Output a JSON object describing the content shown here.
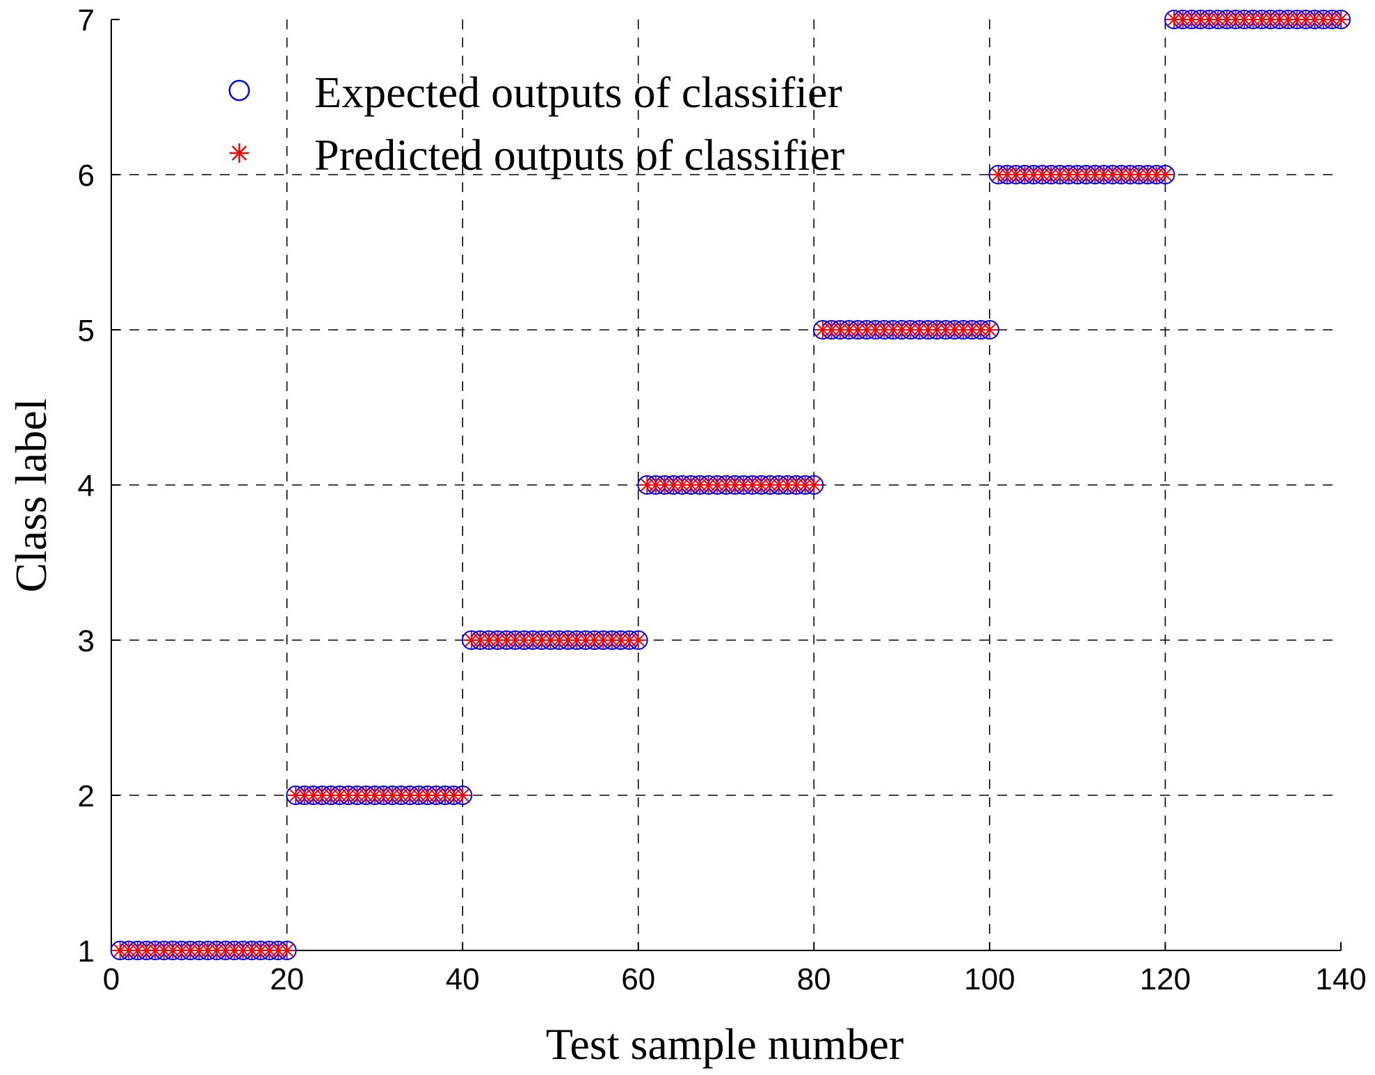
{
  "chart_data": {
    "type": "scatter",
    "xlabel": "Test sample number",
    "ylabel": "Class label",
    "xlim": [
      0,
      140
    ],
    "ylim": [
      1,
      7
    ],
    "xticks": [
      "0",
      "20",
      "40",
      "60",
      "80",
      "100",
      "120",
      "140"
    ],
    "yticks": [
      "1",
      "2",
      "3",
      "4",
      "5",
      "6",
      "7"
    ],
    "grid": true,
    "grid_style": "dashed",
    "legend_position": "top-left",
    "x": [
      1,
      2,
      3,
      4,
      5,
      6,
      7,
      8,
      9,
      10,
      11,
      12,
      13,
      14,
      15,
      16,
      17,
      18,
      19,
      20,
      21,
      22,
      23,
      24,
      25,
      26,
      27,
      28,
      29,
      30,
      31,
      32,
      33,
      34,
      35,
      36,
      37,
      38,
      39,
      40,
      41,
      42,
      43,
      44,
      45,
      46,
      47,
      48,
      49,
      50,
      51,
      52,
      53,
      54,
      55,
      56,
      57,
      58,
      59,
      60,
      61,
      62,
      63,
      64,
      65,
      66,
      67,
      68,
      69,
      70,
      71,
      72,
      73,
      74,
      75,
      76,
      77,
      78,
      79,
      80,
      81,
      82,
      83,
      84,
      85,
      86,
      87,
      88,
      89,
      90,
      91,
      92,
      93,
      94,
      95,
      96,
      97,
      98,
      99,
      100,
      101,
      102,
      103,
      104,
      105,
      106,
      107,
      108,
      109,
      110,
      111,
      112,
      113,
      114,
      115,
      116,
      117,
      118,
      119,
      120,
      121,
      122,
      123,
      124,
      125,
      126,
      127,
      128,
      129,
      130,
      131,
      132,
      133,
      134,
      135,
      136,
      137,
      138,
      139,
      140
    ],
    "series": [
      {
        "name": "Expected outputs of classifier",
        "marker": "circle",
        "color": "#0000ff",
        "values": [
          1,
          1,
          1,
          1,
          1,
          1,
          1,
          1,
          1,
          1,
          1,
          1,
          1,
          1,
          1,
          1,
          1,
          1,
          1,
          1,
          2,
          2,
          2,
          2,
          2,
          2,
          2,
          2,
          2,
          2,
          2,
          2,
          2,
          2,
          2,
          2,
          2,
          2,
          2,
          2,
          3,
          3,
          3,
          3,
          3,
          3,
          3,
          3,
          3,
          3,
          3,
          3,
          3,
          3,
          3,
          3,
          3,
          3,
          3,
          3,
          4,
          4,
          4,
          4,
          4,
          4,
          4,
          4,
          4,
          4,
          4,
          4,
          4,
          4,
          4,
          4,
          4,
          4,
          4,
          4,
          5,
          5,
          5,
          5,
          5,
          5,
          5,
          5,
          5,
          5,
          5,
          5,
          5,
          5,
          5,
          5,
          5,
          5,
          5,
          5,
          6,
          6,
          6,
          6,
          6,
          6,
          6,
          6,
          6,
          6,
          6,
          6,
          6,
          6,
          6,
          6,
          6,
          6,
          6,
          6,
          7,
          7,
          7,
          7,
          7,
          7,
          7,
          7,
          7,
          7,
          7,
          7,
          7,
          7,
          7,
          7,
          7,
          7,
          7,
          7
        ]
      },
      {
        "name": "Predicted outputs of classifier",
        "marker": "asterisk",
        "color": "#ff0000",
        "values": [
          1,
          1,
          1,
          1,
          1,
          1,
          1,
          1,
          1,
          1,
          1,
          1,
          1,
          1,
          1,
          1,
          1,
          1,
          1,
          1,
          2,
          2,
          2,
          2,
          2,
          2,
          2,
          2,
          2,
          2,
          2,
          2,
          2,
          2,
          2,
          2,
          2,
          2,
          2,
          2,
          3,
          3,
          3,
          3,
          3,
          3,
          3,
          3,
          3,
          3,
          3,
          3,
          3,
          3,
          3,
          3,
          3,
          3,
          3,
          3,
          4,
          4,
          4,
          4,
          4,
          4,
          4,
          4,
          4,
          4,
          4,
          4,
          4,
          4,
          4,
          4,
          4,
          4,
          4,
          4,
          5,
          5,
          5,
          5,
          5,
          5,
          5,
          5,
          5,
          5,
          5,
          5,
          5,
          5,
          5,
          5,
          5,
          5,
          5,
          5,
          6,
          6,
          6,
          6,
          6,
          6,
          6,
          6,
          6,
          6,
          6,
          6,
          6,
          6,
          6,
          6,
          6,
          6,
          6,
          6,
          7,
          7,
          7,
          7,
          7,
          7,
          7,
          7,
          7,
          7,
          7,
          7,
          7,
          7,
          7,
          7,
          7,
          7,
          7,
          7
        ]
      }
    ]
  }
}
